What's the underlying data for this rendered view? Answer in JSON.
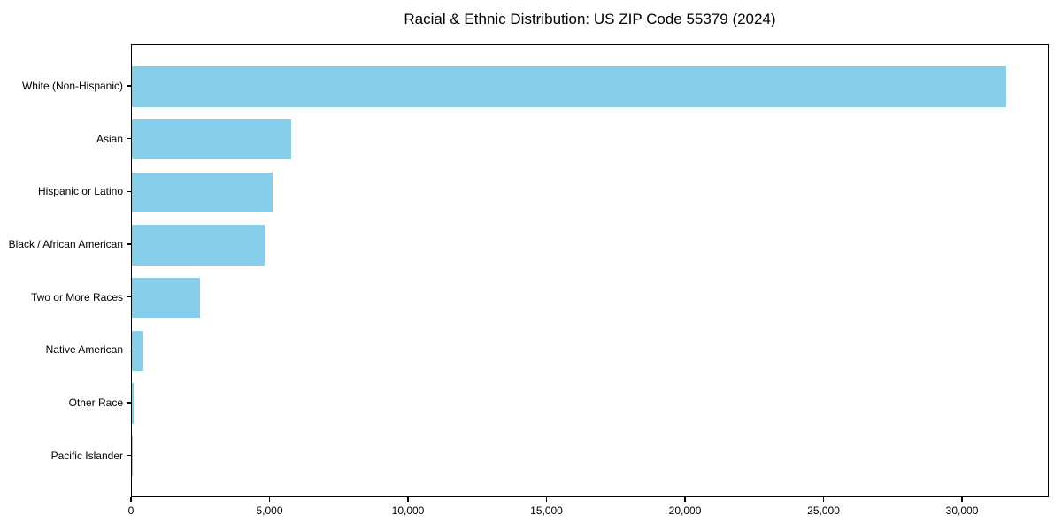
{
  "chart_data": {
    "type": "bar",
    "orientation": "horizontal",
    "title": "Racial & Ethnic Distribution: US ZIP Code 55379 (2024)",
    "categories": [
      "White (Non-Hispanic)",
      "Asian",
      "Hispanic or Latino",
      "Black / African American",
      "Two or More Races",
      "Native American",
      "Other Race",
      "Pacific Islander"
    ],
    "values": [
      31550,
      5760,
      5080,
      4780,
      2470,
      430,
      50,
      10
    ],
    "xlabel": "",
    "ylabel": "",
    "xlim": [
      0,
      33130
    ],
    "xtick_values": [
      0,
      5000,
      10000,
      15000,
      20000,
      25000,
      30000
    ],
    "xtick_labels": [
      "0",
      "5,000",
      "10,000",
      "15,000",
      "20,000",
      "25,000",
      "30,000"
    ],
    "bar_color": "#87CEEB",
    "grid": false,
    "legend": null
  }
}
